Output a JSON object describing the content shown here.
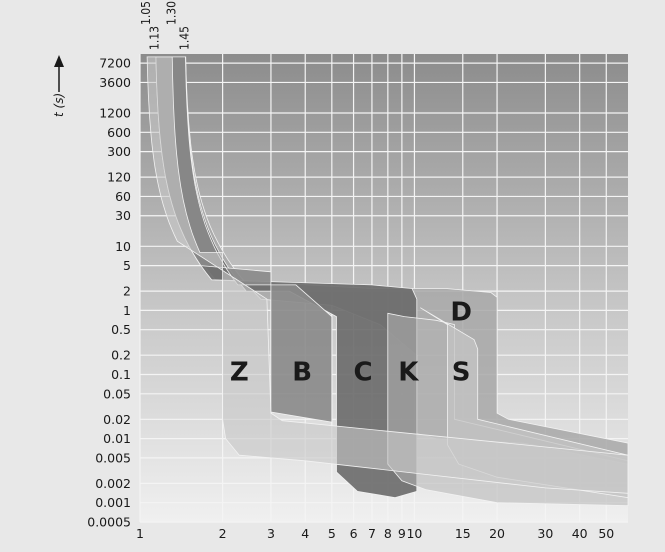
{
  "chart_data": {
    "type": "area",
    "title": "",
    "ylabel": "t (s)",
    "xlabel": "",
    "x_scale": "log",
    "y_scale": "log",
    "xlim": [
      1,
      60
    ],
    "ylim": [
      0.0005,
      10000
    ],
    "x_ticks": [
      1,
      2,
      3,
      4,
      5,
      6,
      7,
      8,
      9,
      10,
      15,
      20,
      30,
      40,
      50
    ],
    "y_ticks": [
      "7200",
      "3600",
      "1200",
      "600",
      "300",
      "120",
      "60",
      "30",
      "10",
      "5",
      "2",
      "1",
      "0.5",
      "0.2",
      "0.1",
      "0.05",
      "0.02",
      "0.01",
      "0.005",
      "0.002",
      "0.001",
      "0.0005"
    ],
    "thermal_multipliers": [
      "1.05",
      "1.13",
      "1.30",
      "1.45"
    ],
    "grid": true,
    "series": [
      {
        "name": "Z",
        "magnetic_trip_range": [
          2,
          3
        ],
        "color": "#c8c8c8"
      },
      {
        "name": "B",
        "magnetic_trip_range": [
          3,
          5
        ],
        "color": "#8a8a8a"
      },
      {
        "name": "C",
        "magnetic_trip_range": [
          5,
          10
        ],
        "color": "#6a6a6a"
      },
      {
        "name": "K",
        "magnetic_trip_range": [
          8,
          14
        ],
        "color": "#b4b4b4"
      },
      {
        "name": "S",
        "magnetic_trip_range": [
          13,
          17
        ],
        "color": "#c4c4c4"
      },
      {
        "name": "D",
        "magnetic_trip_range": [
          10,
          20
        ],
        "color": "#a8a8a8"
      }
    ]
  }
}
